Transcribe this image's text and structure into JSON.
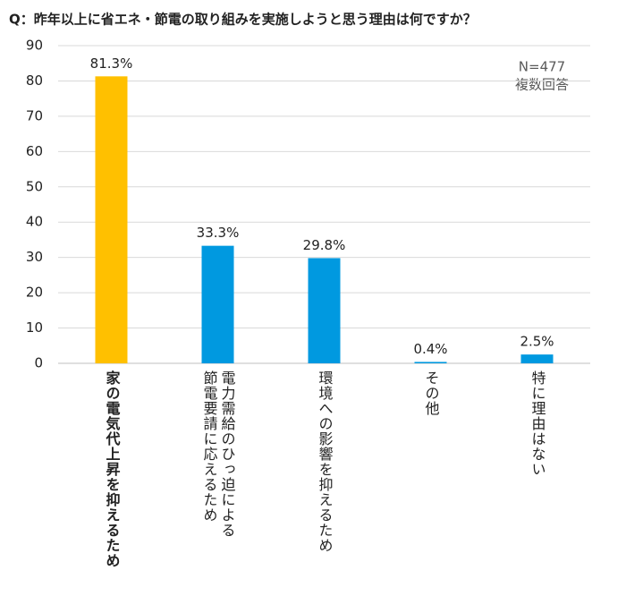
{
  "chart_data": {
    "type": "bar",
    "title": "Q：昨年以上に省エネ・節電の取り組みを実施しようと思う理由は何ですか？",
    "categories": [
      "家の電気代上昇を抑えるため",
      "電力需給のひっ迫による節電要請に応えるため",
      "環境への影響を抑えるため",
      "その他",
      "特に理由はない"
    ],
    "values": [
      81.3,
      33.3,
      29.8,
      0.4,
      2.5
    ],
    "value_labels": [
      "81.3%",
      "33.3%",
      "29.8%",
      "0.4%",
      "2.5%"
    ],
    "colors": [
      "#ffc000",
      "#0099e0",
      "#0099e0",
      "#0099e0",
      "#0099e0"
    ],
    "ylim": [
      0,
      90
    ],
    "yticks": [
      0,
      10,
      20,
      30,
      40,
      50,
      60,
      70,
      80,
      90
    ],
    "grid": true,
    "annotations": [
      "N=477",
      "複数回答"
    ]
  }
}
